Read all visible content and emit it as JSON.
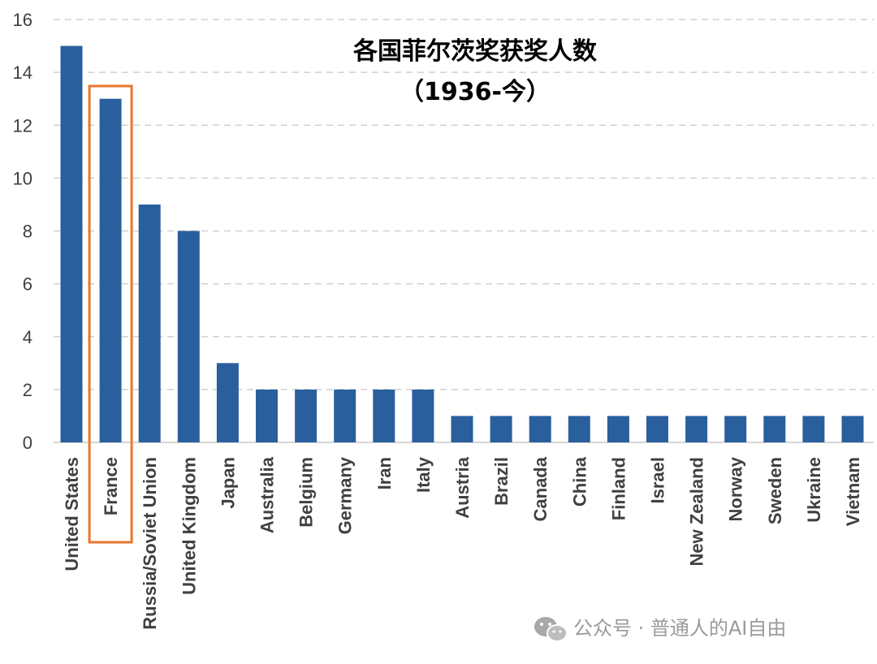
{
  "chart_data": {
    "type": "bar",
    "title": "各国菲尔茨奖获奖人数",
    "subtitle": "（1936-今）",
    "categories": [
      "United States",
      "France",
      "Russia/Soviet Union",
      "United Kingdom",
      "Japan",
      "Australia",
      "Belgium",
      "Germany",
      "Iran",
      "Italy",
      "Austria",
      "Brazil",
      "Canada",
      "China",
      "Finland",
      "Israel",
      "New Zealand",
      "Norway",
      "Sweden",
      "Ukraine",
      "Vietnam"
    ],
    "values": [
      15,
      13,
      9,
      8,
      3,
      2,
      2,
      2,
      2,
      2,
      1,
      1,
      1,
      1,
      1,
      1,
      1,
      1,
      1,
      1,
      1
    ],
    "ylim": [
      0,
      16
    ],
    "yticks": [
      0,
      2,
      4,
      6,
      8,
      10,
      12,
      14,
      16
    ],
    "grid": true,
    "highlight_category": "France",
    "bar_color": "#2a5f9e",
    "highlight_color": "#e8772e",
    "grid_color": "#d0d0d0"
  },
  "watermark": {
    "icon": "wechat-icon",
    "text": "公众号 · 普通人的AI自由"
  }
}
